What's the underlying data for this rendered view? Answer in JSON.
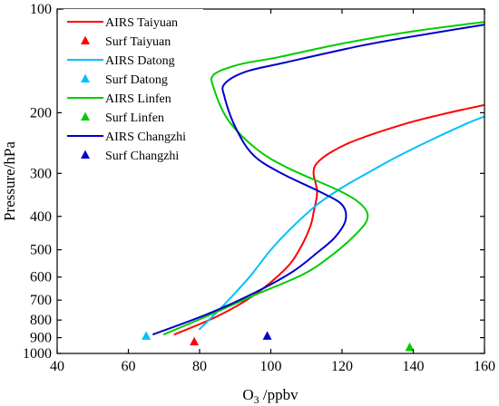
{
  "chart_data": {
    "type": "line",
    "xlabel_main": "O",
    "xlabel_sub": "3",
    "xlabel_rest": " /ppbv",
    "ylabel": "Pressure/hPa",
    "xlim": [
      40,
      160
    ],
    "ylim": [
      1000,
      100
    ],
    "y_scale": "log-like pressure",
    "x_ticks": [
      40,
      60,
      80,
      100,
      120,
      140,
      160
    ],
    "y_ticks": [
      100,
      200,
      300,
      400,
      500,
      600,
      700,
      800,
      900,
      1000
    ],
    "series": [
      {
        "name": "AIRS Taiyuan",
        "color": "#ff0000",
        "points": [
          [
            73,
            880
          ],
          [
            85,
            780
          ],
          [
            95,
            680
          ],
          [
            104,
            570
          ],
          [
            108,
            500
          ],
          [
            111,
            430
          ],
          [
            112,
            390
          ],
          [
            113,
            340
          ],
          [
            112,
            300
          ],
          [
            113,
            280
          ],
          [
            117,
            260
          ],
          [
            124,
            240
          ],
          [
            138,
            215
          ],
          [
            150,
            200
          ],
          [
            160,
            190
          ]
        ]
      },
      {
        "name": "AIRS Datong",
        "color": "#00bfff",
        "points": [
          [
            80,
            850
          ],
          [
            87,
            720
          ],
          [
            94,
            600
          ],
          [
            100,
            500
          ],
          [
            106,
            430
          ],
          [
            113,
            370
          ],
          [
            120,
            330
          ],
          [
            127,
            300
          ],
          [
            135,
            270
          ],
          [
            145,
            240
          ],
          [
            155,
            215
          ],
          [
            160,
            205
          ]
        ]
      },
      {
        "name": "AIRS Linfen",
        "color": "#00cc00",
        "points": [
          [
            70,
            880
          ],
          [
            82,
            780
          ],
          [
            95,
            680
          ],
          [
            109,
            590
          ],
          [
            117,
            520
          ],
          [
            123,
            460
          ],
          [
            127,
            410
          ],
          [
            126,
            375
          ],
          [
            120,
            340
          ],
          [
            105,
            290
          ],
          [
            96,
            255
          ],
          [
            88,
            210
          ],
          [
            84,
            170
          ],
          [
            84,
            155
          ],
          [
            91,
            145
          ],
          [
            102,
            138
          ],
          [
            120,
            126
          ],
          [
            140,
            116
          ],
          [
            160,
            109
          ]
        ]
      },
      {
        "name": "AIRS Changzhi",
        "color": "#0000cc",
        "points": [
          [
            67,
            880
          ],
          [
            82,
            770
          ],
          [
            95,
            670
          ],
          [
            106,
            580
          ],
          [
            113,
            510
          ],
          [
            118,
            460
          ],
          [
            121,
            410
          ],
          [
            120,
            370
          ],
          [
            114,
            340
          ],
          [
            103,
            300
          ],
          [
            95,
            265
          ],
          [
            90,
            220
          ],
          [
            87,
            180
          ],
          [
            87,
            165
          ],
          [
            93,
            152
          ],
          [
            104,
            143
          ],
          [
            125,
            128
          ],
          [
            140,
            120
          ],
          [
            160,
            111
          ]
        ]
      }
    ],
    "markers": [
      {
        "name": "Surf Taiyuan",
        "color": "#ff0000",
        "x": 78.5,
        "y": 925
      },
      {
        "name": "Surf Datong",
        "color": "#00bfff",
        "x": 65,
        "y": 890
      },
      {
        "name": "Surf Linfen",
        "color": "#00cc00",
        "x": 139,
        "y": 960
      },
      {
        "name": "Surf Changzhi",
        "color": "#0000cc",
        "x": 99,
        "y": 890
      }
    ],
    "legend": [
      {
        "label": "AIRS Taiyuan",
        "kind": "line",
        "color": "#ff0000"
      },
      {
        "label": "Surf Taiyuan",
        "kind": "triangle",
        "color": "#ff0000"
      },
      {
        "label": "AIRS Datong",
        "kind": "line",
        "color": "#00bfff"
      },
      {
        "label": "Surf Datong",
        "kind": "triangle",
        "color": "#00bfff"
      },
      {
        "label": "AIRS Linfen",
        "kind": "line",
        "color": "#00cc00"
      },
      {
        "label": "Surf Linfen",
        "kind": "triangle",
        "color": "#00cc00"
      },
      {
        "label": "AIRS Changzhi",
        "kind": "line",
        "color": "#0000cc"
      },
      {
        "label": "Surf Changzhi",
        "kind": "triangle",
        "color": "#0000cc"
      }
    ],
    "legend_position": "top-left"
  }
}
